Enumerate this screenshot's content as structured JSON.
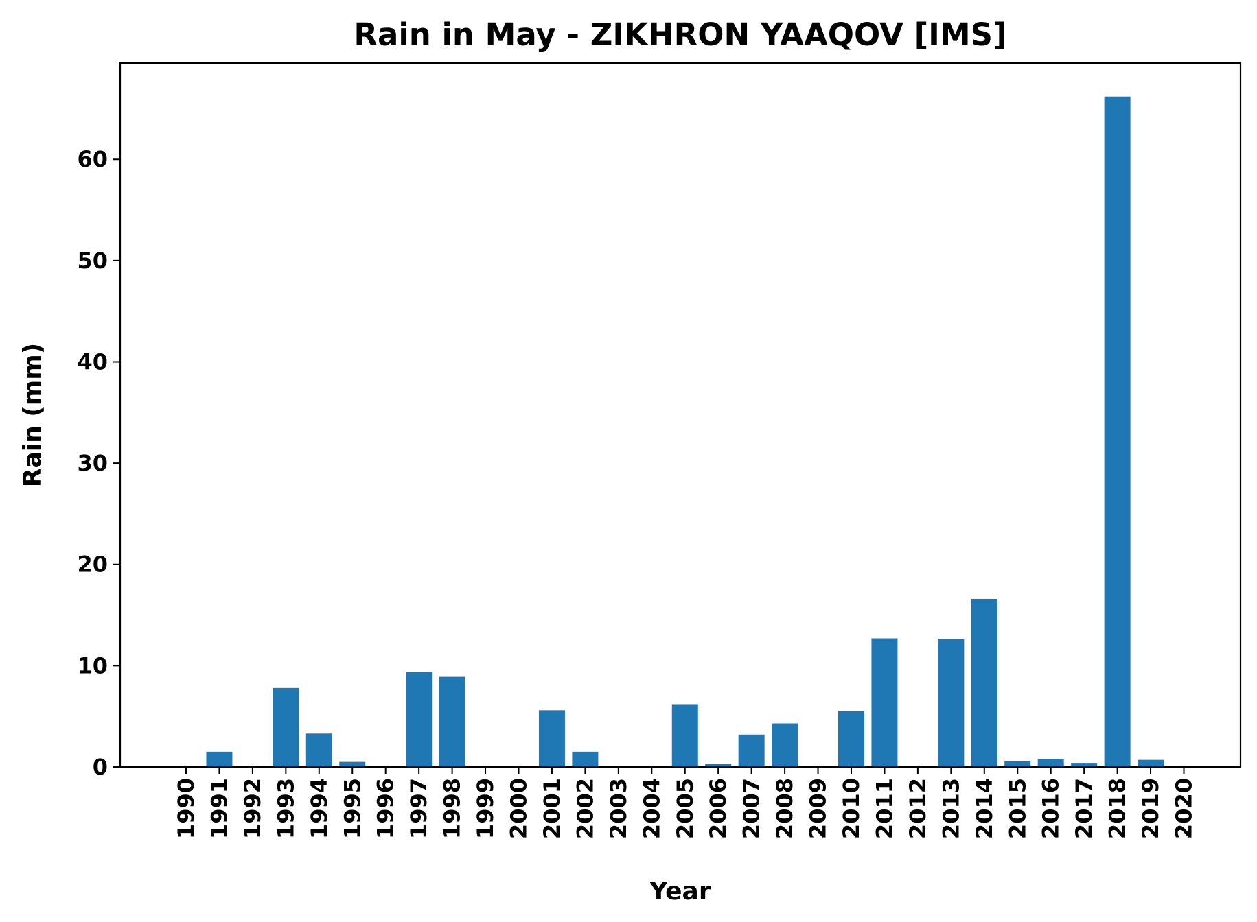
{
  "chart_data": {
    "type": "bar",
    "title": "Rain in May - ZIKHRON YAAQOV [IMS]",
    "xlabel": "Year",
    "ylabel": "Rain (mm)",
    "categories": [
      "1990",
      "1991",
      "1992",
      "1993",
      "1994",
      "1995",
      "1996",
      "1997",
      "1998",
      "1999",
      "2000",
      "2001",
      "2002",
      "2003",
      "2004",
      "2005",
      "2006",
      "2007",
      "2008",
      "2009",
      "2010",
      "2011",
      "2012",
      "2013",
      "2014",
      "2015",
      "2016",
      "2017",
      "2018",
      "2019",
      "2020"
    ],
    "values": [
      0,
      1.5,
      0,
      7.8,
      3.3,
      0.5,
      0,
      9.4,
      8.9,
      0,
      0,
      5.6,
      1.5,
      0,
      0,
      6.2,
      0.3,
      3.2,
      4.3,
      0,
      5.5,
      12.7,
      0,
      12.6,
      16.6,
      0.6,
      0.8,
      0.4,
      66.2,
      0.7,
      0
    ],
    "ylim": [
      0,
      69.5
    ],
    "yticks": [
      0,
      10,
      20,
      30,
      40,
      50,
      60
    ],
    "bar_color": "#1f77b4",
    "grid": false,
    "legend": "none"
  }
}
